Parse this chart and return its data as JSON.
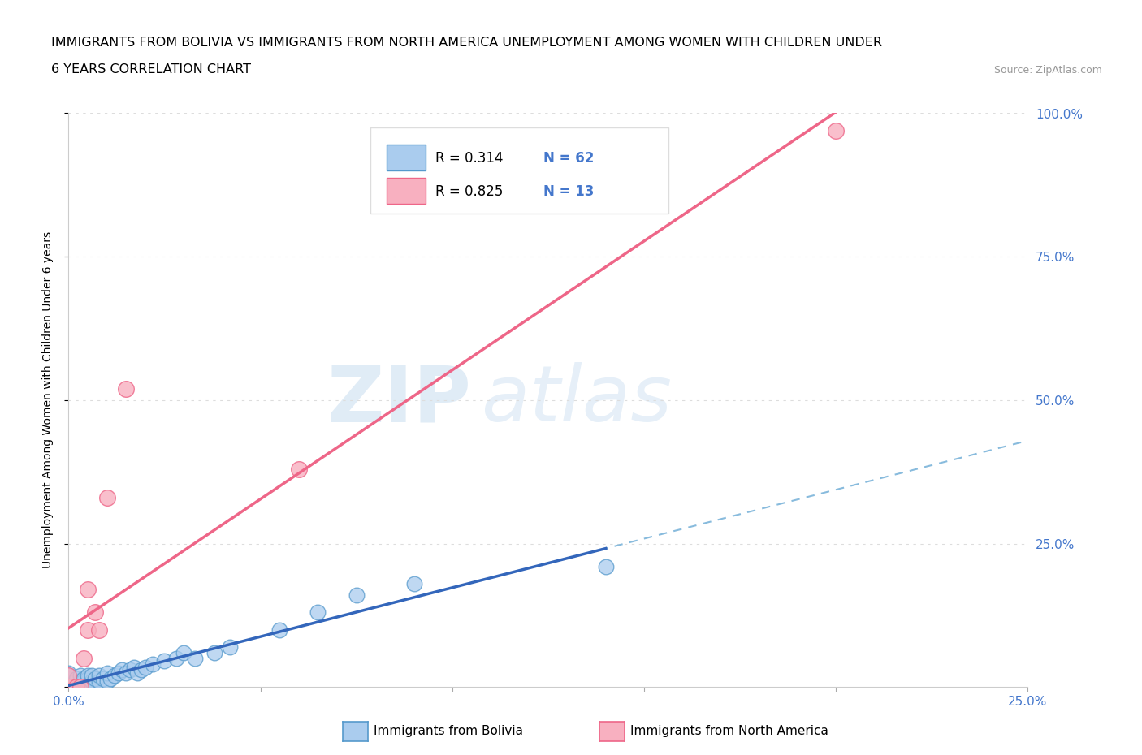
{
  "title_line1": "IMMIGRANTS FROM BOLIVIA VS IMMIGRANTS FROM NORTH AMERICA UNEMPLOYMENT AMONG WOMEN WITH CHILDREN UNDER",
  "title_line2": "6 YEARS CORRELATION CHART",
  "source_text": "Source: ZipAtlas.com",
  "ylabel": "Unemployment Among Women with Children Under 6 years",
  "xlim": [
    0.0,
    0.25
  ],
  "ylim": [
    0.0,
    1.0
  ],
  "xticks": [
    0.0,
    0.05,
    0.1,
    0.15,
    0.2,
    0.25
  ],
  "yticks": [
    0.0,
    0.25,
    0.5,
    0.75,
    1.0
  ],
  "xtick_labels": [
    "0.0%",
    "",
    "",
    "",
    "",
    "25.0%"
  ],
  "ytick_labels_right": [
    "",
    "25.0%",
    "50.0%",
    "75.0%",
    "100.0%"
  ],
  "bolivia_color": "#aaccee",
  "north_america_color": "#f8b0c0",
  "bolivia_edge_color": "#5599cc",
  "north_america_edge_color": "#ee6688",
  "trend_bolivia_color": "#3366bb",
  "trend_na_color": "#ee6688",
  "dashed_line_color": "#88bbdd",
  "R_bolivia": 0.314,
  "N_bolivia": 62,
  "R_na": 0.825,
  "N_na": 13,
  "legend_label_bolivia": "Immigrants from Bolivia",
  "legend_label_na": "Immigrants from North America",
  "bolivia_x": [
    0.0,
    0.0,
    0.0,
    0.0,
    0.0,
    0.0,
    0.0,
    0.0,
    0.0,
    0.0,
    0.002,
    0.002,
    0.002,
    0.002,
    0.002,
    0.003,
    0.003,
    0.003,
    0.003,
    0.003,
    0.004,
    0.004,
    0.004,
    0.004,
    0.005,
    0.005,
    0.005,
    0.005,
    0.005,
    0.005,
    0.006,
    0.006,
    0.006,
    0.007,
    0.007,
    0.008,
    0.008,
    0.009,
    0.01,
    0.01,
    0.011,
    0.012,
    0.013,
    0.014,
    0.015,
    0.016,
    0.017,
    0.018,
    0.019,
    0.02,
    0.022,
    0.025,
    0.028,
    0.03,
    0.033,
    0.038,
    0.042,
    0.055,
    0.065,
    0.075,
    0.09,
    0.14
  ],
  "bolivia_y": [
    0.0,
    0.0,
    0.0,
    0.0,
    0.0,
    0.0,
    0.01,
    0.015,
    0.02,
    0.025,
    0.0,
    0.0,
    0.005,
    0.01,
    0.015,
    0.0,
    0.0,
    0.005,
    0.01,
    0.02,
    0.0,
    0.005,
    0.01,
    0.015,
    0.0,
    0.0,
    0.005,
    0.01,
    0.015,
    0.02,
    0.0,
    0.01,
    0.02,
    0.005,
    0.015,
    0.01,
    0.02,
    0.015,
    0.01,
    0.025,
    0.015,
    0.02,
    0.025,
    0.03,
    0.025,
    0.03,
    0.035,
    0.025,
    0.03,
    0.035,
    0.04,
    0.045,
    0.05,
    0.06,
    0.05,
    0.06,
    0.07,
    0.1,
    0.13,
    0.16,
    0.18,
    0.21
  ],
  "na_x": [
    0.0,
    0.0,
    0.002,
    0.003,
    0.004,
    0.005,
    0.005,
    0.007,
    0.008,
    0.01,
    0.015,
    0.06,
    0.2
  ],
  "na_y": [
    0.0,
    0.02,
    0.0,
    0.0,
    0.05,
    0.1,
    0.17,
    0.13,
    0.1,
    0.33,
    0.52,
    0.38,
    0.97
  ],
  "watermark_zip": "ZIP",
  "watermark_atlas": "atlas",
  "background_color": "#ffffff",
  "grid_color": "#dddddd"
}
